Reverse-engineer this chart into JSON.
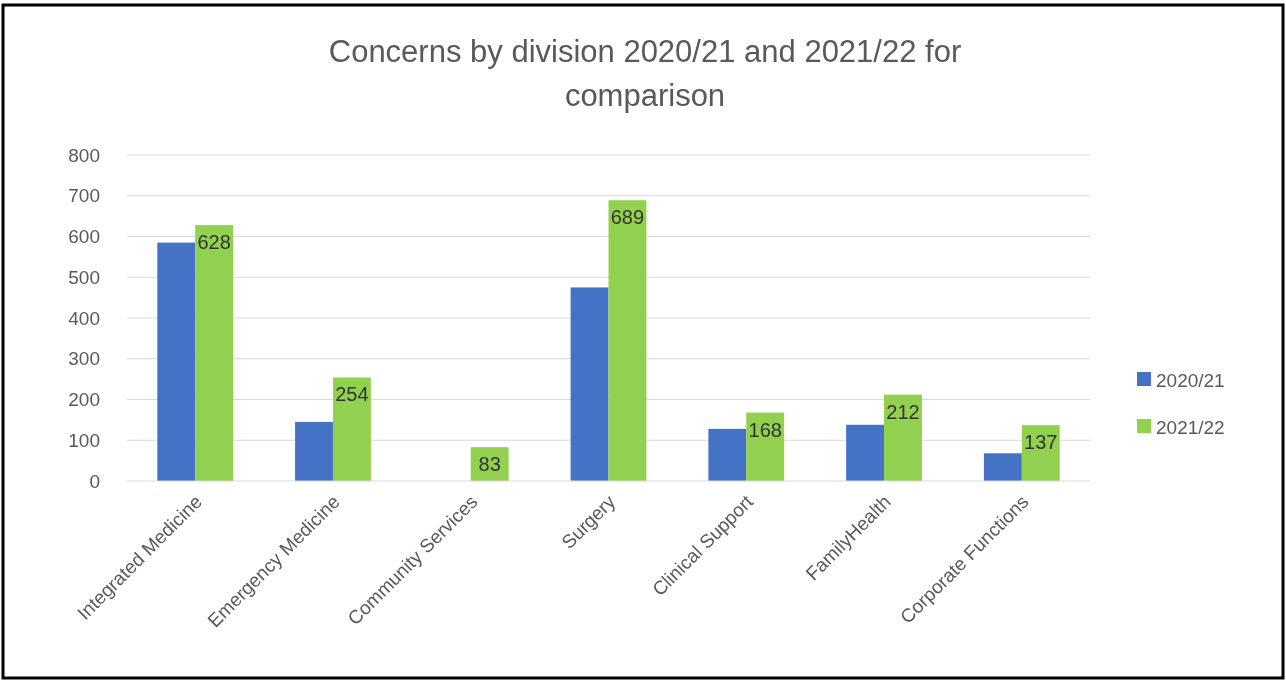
{
  "chart_data": {
    "type": "bar",
    "title": "Concerns by division 2020/21 and 2021/22 for comparison",
    "categories": [
      "Integrated Medicine",
      "Emergency Medicine",
      "Community Services",
      "Surgery",
      "Clinical Support",
      "FamilyHealth",
      "Corporate Functions"
    ],
    "series": [
      {
        "name": "2020/21",
        "color": "#4472c4",
        "values": [
          585,
          145,
          null,
          475,
          128,
          138,
          68
        ]
      },
      {
        "name": "2021/22",
        "color": "#92d050",
        "values": [
          628,
          254,
          83,
          689,
          168,
          212,
          137
        ],
        "value_labels": [
          "628",
          "254",
          "83",
          "689",
          "168",
          "212",
          "137"
        ]
      }
    ],
    "ylim": [
      0,
      800
    ],
    "yticks": [
      0,
      100,
      200,
      300,
      400,
      500,
      600,
      700,
      800
    ],
    "grid": "y",
    "legend": "right"
  }
}
